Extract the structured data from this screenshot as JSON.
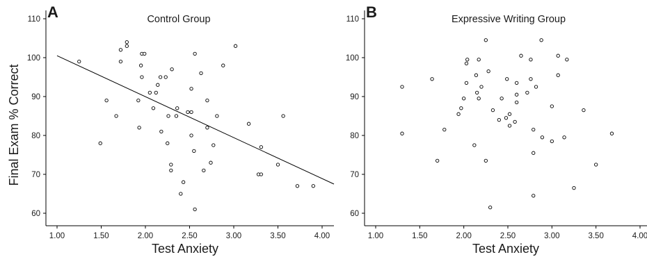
{
  "figure": {
    "shared_ylabel": "Final Exam % Correct"
  },
  "chart_data": [
    {
      "type": "scatter",
      "panel_letter": "A",
      "title": "Control Group",
      "xlabel": "Test Anxiety",
      "ylabel": "Final Exam % Correct",
      "xlim": [
        0.85,
        4.15
      ],
      "ylim": [
        57,
        112
      ],
      "x_ticks": [
        "1.00",
        "1.50",
        "2.00",
        "2.50",
        "3.00",
        "3.50",
        "4.00"
      ],
      "y_ticks": [
        "60",
        "70",
        "80",
        "90",
        "100",
        "110"
      ],
      "grid": false,
      "fit_line": {
        "x": [
          1.0,
          4.15
        ],
        "y": [
          100.5,
          67.5
        ]
      },
      "points": [
        [
          1.25,
          99
        ],
        [
          1.49,
          78
        ],
        [
          1.56,
          89
        ],
        [
          1.67,
          85
        ],
        [
          1.72,
          102
        ],
        [
          1.72,
          99
        ],
        [
          1.79,
          104
        ],
        [
          1.79,
          103
        ],
        [
          1.92,
          89
        ],
        [
          1.93,
          82
        ],
        [
          1.95,
          98
        ],
        [
          1.96,
          95
        ],
        [
          1.96,
          101
        ],
        [
          1.99,
          101
        ],
        [
          2.05,
          91
        ],
        [
          2.09,
          87
        ],
        [
          2.12,
          91
        ],
        [
          2.14,
          93
        ],
        [
          2.17,
          95
        ],
        [
          2.18,
          81
        ],
        [
          2.23,
          95
        ],
        [
          2.25,
          78
        ],
        [
          2.26,
          85
        ],
        [
          2.29,
          72.5
        ],
        [
          2.29,
          71
        ],
        [
          2.3,
          97
        ],
        [
          2.35,
          85
        ],
        [
          2.36,
          87
        ],
        [
          2.4,
          65
        ],
        [
          2.43,
          68
        ],
        [
          2.48,
          86
        ],
        [
          2.52,
          92
        ],
        [
          2.52,
          86
        ],
        [
          2.52,
          80
        ],
        [
          2.55,
          76
        ],
        [
          2.56,
          101
        ],
        [
          2.56,
          61
        ],
        [
          2.63,
          96
        ],
        [
          2.66,
          71
        ],
        [
          2.7,
          82
        ],
        [
          2.7,
          89
        ],
        [
          2.74,
          73
        ],
        [
          2.77,
          77.5
        ],
        [
          2.81,
          85
        ],
        [
          2.88,
          98
        ],
        [
          3.02,
          103
        ],
        [
          3.17,
          83
        ],
        [
          3.28,
          70
        ],
        [
          3.31,
          77
        ],
        [
          3.31,
          70
        ],
        [
          3.5,
          72.5
        ],
        [
          3.56,
          85
        ],
        [
          3.72,
          67
        ],
        [
          3.9,
          67
        ]
      ]
    },
    {
      "type": "scatter",
      "panel_letter": "B",
      "title": "Expressive Writing Group",
      "xlabel": "Test Anxiety",
      "ylabel": "",
      "xlim": [
        0.85,
        4.15
      ],
      "ylim": [
        57,
        112
      ],
      "x_ticks": [
        "1.00",
        "1.50",
        "2.00",
        "2.50",
        "3.00",
        "3.50",
        "4.00"
      ],
      "y_ticks": [
        "60",
        "70",
        "80",
        "90",
        "100",
        "110"
      ],
      "grid": false,
      "points": [
        [
          1.3,
          92.5
        ],
        [
          1.3,
          80.5
        ],
        [
          1.64,
          94.5
        ],
        [
          1.7,
          73.5
        ],
        [
          1.78,
          81.5
        ],
        [
          1.94,
          85.5
        ],
        [
          1.97,
          87
        ],
        [
          2.0,
          89.5
        ],
        [
          2.03,
          93.5
        ],
        [
          2.03,
          98.5
        ],
        [
          2.04,
          99.5
        ],
        [
          2.12,
          77.5
        ],
        [
          2.14,
          95.5
        ],
        [
          2.15,
          91
        ],
        [
          2.17,
          89.5
        ],
        [
          2.17,
          99.5
        ],
        [
          2.2,
          92.5
        ],
        [
          2.25,
          104.5
        ],
        [
          2.25,
          73.5
        ],
        [
          2.28,
          96.5
        ],
        [
          2.3,
          61.5
        ],
        [
          2.33,
          86.5
        ],
        [
          2.4,
          84
        ],
        [
          2.43,
          89.5
        ],
        [
          2.48,
          84.5
        ],
        [
          2.49,
          94.5
        ],
        [
          2.52,
          82.5
        ],
        [
          2.52,
          85.5
        ],
        [
          2.58,
          83.5
        ],
        [
          2.6,
          88.5
        ],
        [
          2.6,
          90.5
        ],
        [
          2.6,
          93.5
        ],
        [
          2.65,
          100.5
        ],
        [
          2.72,
          91
        ],
        [
          2.76,
          94.5
        ],
        [
          2.76,
          99.5
        ],
        [
          2.79,
          81.5
        ],
        [
          2.79,
          75.5
        ],
        [
          2.79,
          64.5
        ],
        [
          2.82,
          92.5
        ],
        [
          2.88,
          104.5
        ],
        [
          2.89,
          79.5
        ],
        [
          3.0,
          78.5
        ],
        [
          3.0,
          87.5
        ],
        [
          3.07,
          100.5
        ],
        [
          3.07,
          95.5
        ],
        [
          3.14,
          79.5
        ],
        [
          3.17,
          99.5
        ],
        [
          3.25,
          66.5
        ],
        [
          3.36,
          86.5
        ],
        [
          3.5,
          72.5
        ],
        [
          3.68,
          80.5
        ]
      ]
    }
  ]
}
